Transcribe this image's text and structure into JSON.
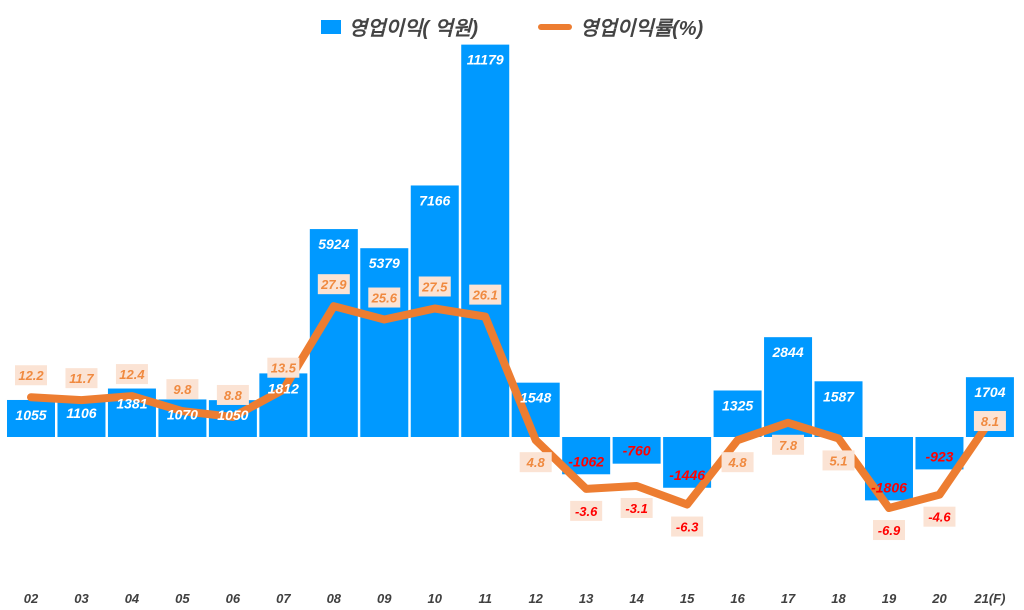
{
  "chart_data": {
    "type": "bar+line",
    "categories": [
      "02",
      "03",
      "04",
      "05",
      "06",
      "07",
      "08",
      "09",
      "10",
      "11",
      "12",
      "13",
      "14",
      "15",
      "16",
      "17",
      "18",
      "19",
      "20",
      "21(F)"
    ],
    "series": [
      {
        "name": "영업이익( 억원)",
        "type": "bar",
        "axis": "primary",
        "color": "#0099ff",
        "values": [
          1055,
          1106,
          1381,
          1070,
          1050,
          1812,
          5924,
          5379,
          7166,
          11179,
          1548,
          -1062,
          -760,
          -1446,
          1325,
          2844,
          1587,
          -1806,
          -923,
          1704
        ]
      },
      {
        "name": "영업이익률(%)",
        "type": "line",
        "axis": "secondary",
        "color": "#ed7d31",
        "values": [
          12.2,
          11.7,
          12.4,
          9.8,
          8.8,
          13.5,
          27.9,
          25.6,
          27.5,
          26.1,
          4.8,
          -3.6,
          -3.1,
          -6.3,
          4.8,
          7.8,
          5.1,
          -6.9,
          -4.6,
          8.1
        ]
      }
    ],
    "legend": "top",
    "grid": false,
    "data_labels": true,
    "colors": {
      "positive_bar_label": "#ffffff",
      "negative_label": "#ff0000",
      "positive_line_label": "#f08a40",
      "line_label_bg": "#fbe3d4"
    }
  }
}
